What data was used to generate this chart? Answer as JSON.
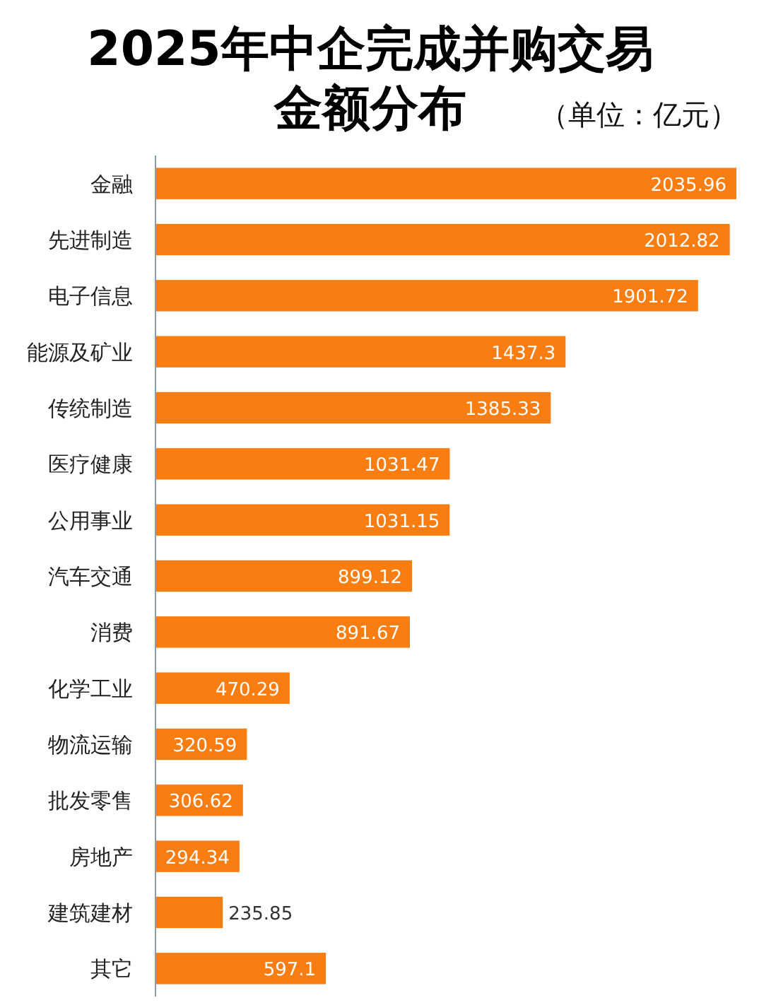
{
  "chart_data": {
    "type": "bar",
    "orientation": "horizontal",
    "title": "2025年中企完成并购交易金额分布",
    "subtitle": "（单位：亿元）",
    "categories": [
      "金融",
      "先进制造",
      "电子信息",
      "能源及矿业",
      "传统制造",
      "医疗健康",
      "公用事业",
      "汽车交通",
      "消费",
      "化学工业",
      "物流运输",
      "批发零售",
      "房地产",
      "建筑建材",
      "其它"
    ],
    "values": [
      2035.96,
      2012.82,
      1901.72,
      1437.3,
      1385.33,
      1031.47,
      1031.15,
      899.12,
      891.67,
      470.29,
      320.59,
      306.62,
      294.34,
      235.85,
      597.1
    ],
    "color": "#fa7d12",
    "data_labels": true
  }
}
